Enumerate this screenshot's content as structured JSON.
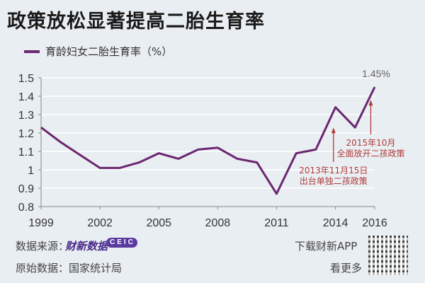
{
  "title": "政策放松显著提高二胎生育率",
  "legend": "育龄妇女二胎生育率（%）",
  "chart_data": {
    "type": "line",
    "title": "政策放松显著提高二胎生育率",
    "series": [
      {
        "name": "育龄妇女二胎生育率（%）",
        "color": "#6b2770",
        "x": [
          1999,
          2000,
          2001,
          2002,
          2003,
          2004,
          2005,
          2006,
          2007,
          2008,
          2009,
          2010,
          2011,
          2012,
          2013,
          2014,
          2015,
          2016
        ],
        "values": [
          1.23,
          1.15,
          1.08,
          1.01,
          1.01,
          1.04,
          1.09,
          1.06,
          1.11,
          1.12,
          1.06,
          1.04,
          0.87,
          1.09,
          1.11,
          1.34,
          1.23,
          1.45
        ]
      }
    ],
    "xlim": [
      1999,
      2016
    ],
    "ylim": [
      0.8,
      1.5
    ],
    "xticks": [
      "1999",
      "2002",
      "2005",
      "2008",
      "2011",
      "2014",
      "2016"
    ],
    "yticks": [
      "0.8",
      "0.9",
      "1",
      "1.1",
      "1.2",
      "1.3",
      "1.4",
      "1.5"
    ],
    "grid": true,
    "annotations": [
      {
        "text": "1.45%",
        "x": 2016,
        "y": 1.45
      },
      {
        "lines": [
          "2013年11月15日",
          "出台单独二孩政策"
        ],
        "x": 2013.9,
        "y": 1.23,
        "color": "#b03a3a"
      },
      {
        "lines": [
          "2015年10月",
          "全面放开二孩政策"
        ],
        "x": 2015.8,
        "y": 1.38,
        "color": "#b03a3a"
      }
    ]
  },
  "footer": {
    "source_label": "数据来源：",
    "source_logo1": "财新数据",
    "source_logo2": "CEIC",
    "origin": "原始数据：国家统计局",
    "app": "下载财新APP",
    "more": "看更多"
  }
}
